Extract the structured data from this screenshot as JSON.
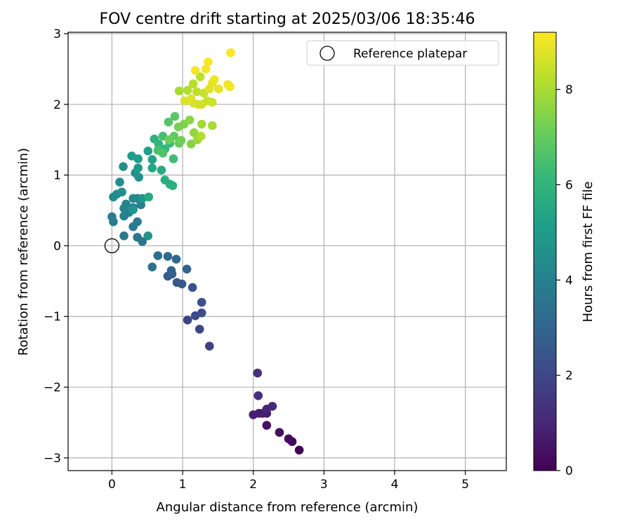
{
  "chart_data": {
    "type": "scatter",
    "title": "FOV centre drift starting at 2025/03/06 18:35:46",
    "xlabel": "Angular distance from reference (arcmin)",
    "ylabel": "Rotation from reference (arcmin)",
    "xlim": [
      -0.62,
      5.58
    ],
    "ylim": [
      -3.18,
      3.02
    ],
    "xticks": [
      "0",
      "1",
      "2",
      "3",
      "4",
      "5"
    ],
    "xtick_values": [
      0,
      1,
      2,
      3,
      4,
      5
    ],
    "yticks": [
      "−3",
      "−2",
      "−1",
      "0",
      "1",
      "2",
      "3"
    ],
    "ytick_values": [
      -3,
      -2,
      -1,
      0,
      1,
      2,
      3
    ],
    "grid": true,
    "legend": {
      "placement": "top-right",
      "entries": [
        "Reference platepar"
      ]
    },
    "colorbar": {
      "label": "Hours from first FF file",
      "colormap": "viridis",
      "range": [
        0,
        9.2
      ],
      "ticks": [
        "0",
        "2",
        "4",
        "6",
        "8"
      ],
      "tick_values": [
        0,
        2,
        4,
        6,
        8
      ]
    },
    "reference_point": {
      "x": 0,
      "y": 0
    },
    "points": [
      [
        2.65,
        -2.89,
        0.05
      ],
      [
        2.55,
        -2.77,
        0.15
      ],
      [
        2.5,
        -2.73,
        0.25
      ],
      [
        2.37,
        -2.64,
        0.35
      ],
      [
        2.19,
        -2.54,
        0.45
      ],
      [
        2.13,
        -2.37,
        0.55
      ],
      [
        2.19,
        -2.37,
        0.65
      ],
      [
        2.08,
        -2.37,
        0.75
      ],
      [
        2.0,
        -2.39,
        0.85
      ],
      [
        2.19,
        -2.31,
        0.95
      ],
      [
        2.27,
        -2.27,
        1.05
      ],
      [
        2.07,
        -2.12,
        1.15
      ],
      [
        2.06,
        -1.8,
        1.25
      ],
      [
        1.38,
        -1.42,
        1.75
      ],
      [
        1.07,
        -1.05,
        1.85
      ],
      [
        1.24,
        -1.18,
        1.95
      ],
      [
        1.18,
        -0.99,
        2.05
      ],
      [
        1.27,
        -0.95,
        2.15
      ],
      [
        1.27,
        -0.8,
        2.25
      ],
      [
        1.14,
        -0.59,
        2.35
      ],
      [
        0.99,
        -0.54,
        2.45
      ],
      [
        0.92,
        -0.52,
        2.55
      ],
      [
        0.79,
        -0.43,
        2.65
      ],
      [
        0.85,
        -0.4,
        2.75
      ],
      [
        0.84,
        -0.35,
        2.85
      ],
      [
        1.06,
        -0.33,
        2.95
      ],
      [
        0.91,
        -0.19,
        3.05
      ],
      [
        0.79,
        -0.15,
        3.15
      ],
      [
        0.65,
        -0.14,
        3.25
      ],
      [
        0.57,
        -0.3,
        3.35
      ],
      [
        0.43,
        0.06,
        3.5
      ],
      [
        0.36,
        0.12,
        3.6
      ],
      [
        0.17,
        0.14,
        3.7
      ],
      [
        0.3,
        0.27,
        3.75
      ],
      [
        0.36,
        0.34,
        3.8
      ],
      [
        0.02,
        0.34,
        3.85
      ],
      [
        0.0,
        0.41,
        3.9
      ],
      [
        0.41,
        0.58,
        3.95
      ],
      [
        0.17,
        0.42,
        4.0
      ],
      [
        0.24,
        0.47,
        4.05
      ],
      [
        0.3,
        0.54,
        4.1
      ],
      [
        0.17,
        0.53,
        4.15
      ],
      [
        0.2,
        0.59,
        4.2
      ],
      [
        0.36,
        0.67,
        4.25
      ],
      [
        0.3,
        0.67,
        4.3
      ],
      [
        0.02,
        0.69,
        4.35
      ],
      [
        0.07,
        0.73,
        4.4
      ],
      [
        0.14,
        0.76,
        4.45
      ],
      [
        0.11,
        0.9,
        4.5
      ],
      [
        0.33,
        1.03,
        4.55
      ],
      [
        0.16,
        1.12,
        4.6
      ],
      [
        0.38,
        0.97,
        4.65
      ],
      [
        0.51,
        0.14,
        4.7
      ],
      [
        0.43,
        0.67,
        4.75
      ],
      [
        0.3,
        0.51,
        4.8
      ],
      [
        0.37,
        1.1,
        4.9
      ],
      [
        0.28,
        1.27,
        5.0
      ],
      [
        0.37,
        1.23,
        5.1
      ],
      [
        0.51,
        1.34,
        5.2
      ],
      [
        0.57,
        1.22,
        5.3
      ],
      [
        0.57,
        1.1,
        5.4
      ],
      [
        0.52,
        0.69,
        5.5
      ],
      [
        0.7,
        1.07,
        5.6
      ],
      [
        0.82,
        0.87,
        5.7
      ],
      [
        0.75,
        0.93,
        5.75
      ],
      [
        0.86,
        0.85,
        5.8
      ],
      [
        0.6,
        1.51,
        5.9
      ],
      [
        0.66,
        1.44,
        6.0
      ],
      [
        0.75,
        1.37,
        6.1
      ],
      [
        0.82,
        1.45,
        6.2
      ],
      [
        0.87,
        1.23,
        6.3
      ],
      [
        0.72,
        1.55,
        6.4
      ],
      [
        0.65,
        1.35,
        6.5
      ],
      [
        0.72,
        1.31,
        6.6
      ],
      [
        0.8,
        1.75,
        6.7
      ],
      [
        0.89,
        1.83,
        6.8
      ],
      [
        0.88,
        1.55,
        6.9
      ],
      [
        0.95,
        1.45,
        7.0
      ],
      [
        0.81,
        1.5,
        7.1
      ],
      [
        0.98,
        1.49,
        7.2
      ],
      [
        0.94,
        1.68,
        7.3
      ],
      [
        1.02,
        1.72,
        7.4
      ],
      [
        1.12,
        1.44,
        7.5
      ],
      [
        1.1,
        1.78,
        7.6
      ],
      [
        1.16,
        1.6,
        7.7
      ],
      [
        1.21,
        1.5,
        7.8
      ],
      [
        1.27,
        1.72,
        7.9
      ],
      [
        1.42,
        1.7,
        8.0
      ],
      [
        1.26,
        1.55,
        8.1
      ],
      [
        0.95,
        2.19,
        8.0
      ],
      [
        1.07,
        2.2,
        8.1
      ],
      [
        1.15,
        2.29,
        8.2
      ],
      [
        1.25,
        2.39,
        8.3
      ],
      [
        1.2,
        2.18,
        8.35
      ],
      [
        1.3,
        2.16,
        8.4
      ],
      [
        1.35,
        2.05,
        8.45
      ],
      [
        1.42,
        2.03,
        8.5
      ],
      [
        1.27,
        2.0,
        8.55
      ],
      [
        1.22,
        2.0,
        8.6
      ],
      [
        1.15,
        2.02,
        8.65
      ],
      [
        1.03,
        2.05,
        8.7
      ],
      [
        1.12,
        2.08,
        8.75
      ],
      [
        1.38,
        2.22,
        8.8
      ],
      [
        1.42,
        2.3,
        8.85
      ],
      [
        1.51,
        2.22,
        8.9
      ],
      [
        1.45,
        2.35,
        8.95
      ],
      [
        1.64,
        2.28,
        9.0
      ],
      [
        1.67,
        2.25,
        9.05
      ],
      [
        1.33,
        2.5,
        9.1
      ],
      [
        1.18,
        2.48,
        9.12
      ],
      [
        1.36,
        2.6,
        9.15
      ],
      [
        1.68,
        2.73,
        9.2
      ]
    ]
  }
}
